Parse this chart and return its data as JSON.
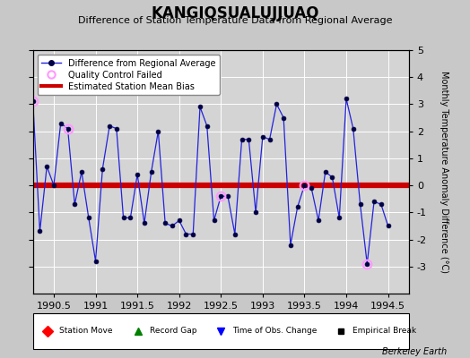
{
  "title": "KANGIQSUALUJJUAQ",
  "subtitle": "Difference of Station Temperature Data from Regional Average",
  "ylabel_right": "Monthly Temperature Anomaly Difference (°C)",
  "xlim": [
    1990.25,
    1994.75
  ],
  "ylim": [
    -4,
    5
  ],
  "yticks": [
    -3,
    -2,
    -1,
    0,
    1,
    2,
    3,
    4,
    5
  ],
  "xticks": [
    1990.5,
    1991.0,
    1991.5,
    1992.0,
    1992.5,
    1993.0,
    1993.5,
    1994.0,
    1994.5
  ],
  "xtick_labels": [
    "1990.5",
    "1991",
    "1991.5",
    "1992",
    "1992.5",
    "1993",
    "1993.5",
    "1994",
    "1994.5"
  ],
  "bias_value": 0.0,
  "background_color": "#c8c8c8",
  "plot_bg_color": "#d4d4d4",
  "line_color": "#2222dd",
  "bias_color": "#cc0000",
  "marker_facecolor": "#000044",
  "marker_edgecolor": "#000044",
  "qc_edgecolor": "#ff99ff",
  "footer": "Berkeley Earth",
  "x_data": [
    1990.25,
    1990.333,
    1990.417,
    1990.5,
    1990.583,
    1990.667,
    1990.75,
    1990.833,
    1990.917,
    1991.0,
    1991.083,
    1991.167,
    1991.25,
    1991.333,
    1991.417,
    1991.5,
    1991.583,
    1991.667,
    1991.75,
    1991.833,
    1991.917,
    1992.0,
    1992.083,
    1992.167,
    1992.25,
    1992.333,
    1992.417,
    1992.5,
    1992.583,
    1992.667,
    1992.75,
    1992.833,
    1992.917,
    1993.0,
    1993.083,
    1993.167,
    1993.25,
    1993.333,
    1993.417,
    1993.5,
    1993.583,
    1993.667,
    1993.75,
    1993.833,
    1993.917,
    1994.0,
    1994.083,
    1994.167,
    1994.25,
    1994.333,
    1994.417,
    1994.5
  ],
  "y_data": [
    3.1,
    -1.7,
    0.7,
    0.0,
    2.3,
    2.1,
    -0.7,
    0.5,
    -1.2,
    -2.8,
    0.6,
    2.2,
    2.1,
    -1.2,
    -1.2,
    0.4,
    -1.4,
    0.5,
    2.0,
    -1.4,
    -1.5,
    -1.3,
    -1.8,
    -1.8,
    2.9,
    2.2,
    -1.3,
    -0.4,
    -0.4,
    -1.8,
    1.7,
    1.7,
    -1.0,
    1.8,
    1.7,
    3.0,
    2.5,
    -2.2,
    -0.8,
    0.0,
    -0.1,
    -1.3,
    0.5,
    0.3,
    -1.2,
    3.2,
    2.1,
    -0.7,
    -2.9,
    -0.6,
    -0.7,
    -1.5
  ],
  "qc_failed_indices": [
    0,
    5,
    27,
    39,
    48
  ],
  "title_fontsize": 12,
  "subtitle_fontsize": 8,
  "tick_fontsize": 8,
  "ylabel_fontsize": 7
}
